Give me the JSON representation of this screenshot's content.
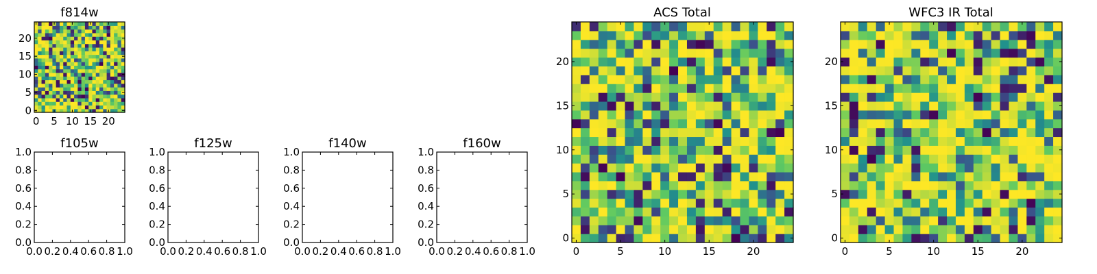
{
  "chart_data": [
    {
      "type": "heatmap",
      "title": "f814w",
      "colormap": "viridis",
      "grid_size": [
        25,
        25
      ],
      "xlim": [
        -0.5,
        24.5
      ],
      "ylim": [
        -0.5,
        24.5
      ],
      "xticks": [
        "0",
        "5",
        "10",
        "15",
        "20"
      ],
      "yticks": [
        "0",
        "5",
        "10",
        "15",
        "20"
      ],
      "seed": 11
    },
    {
      "type": "empty",
      "title": "f105w",
      "xlim": [
        0,
        1
      ],
      "ylim": [
        0,
        1
      ],
      "xticks": [
        "0.0",
        "0.2",
        "0.4",
        "0.6",
        "0.8",
        "1.0"
      ],
      "yticks": [
        "0.0",
        "0.2",
        "0.4",
        "0.6",
        "0.8",
        "1.0"
      ]
    },
    {
      "type": "empty",
      "title": "f125w",
      "xlim": [
        0,
        1
      ],
      "ylim": [
        0,
        1
      ],
      "xticks": [
        "0.0",
        "0.2",
        "0.4",
        "0.6",
        "0.8",
        "1.0"
      ],
      "yticks": [
        "0.0",
        "0.2",
        "0.4",
        "0.6",
        "0.8",
        "1.0"
      ]
    },
    {
      "type": "empty",
      "title": "f140w",
      "xlim": [
        0,
        1
      ],
      "ylim": [
        0,
        1
      ],
      "xticks": [
        "0.0",
        "0.2",
        "0.4",
        "0.6",
        "0.8",
        "1.0"
      ],
      "yticks": [
        "0.0",
        "0.2",
        "0.4",
        "0.6",
        "0.8",
        "1.0"
      ]
    },
    {
      "type": "empty",
      "title": "f160w",
      "xlim": [
        0,
        1
      ],
      "ylim": [
        0,
        1
      ],
      "xticks": [
        "0.0",
        "0.2",
        "0.4",
        "0.6",
        "0.8",
        "1.0"
      ],
      "yticks": [
        "0.0",
        "0.2",
        "0.4",
        "0.6",
        "0.8",
        "1.0"
      ]
    },
    {
      "type": "heatmap",
      "title": "ACS Total",
      "colormap": "viridis",
      "grid_size": [
        25,
        25
      ],
      "xlim": [
        -0.5,
        24.5
      ],
      "ylim": [
        -0.5,
        24.5
      ],
      "xticks": [
        "0",
        "5",
        "10",
        "15",
        "20"
      ],
      "yticks": [
        "0",
        "5",
        "10",
        "15",
        "20"
      ],
      "seed": 29
    },
    {
      "type": "heatmap",
      "title": "WFC3 IR Total",
      "colormap": "viridis",
      "grid_size": [
        25,
        25
      ],
      "xlim": [
        -0.5,
        24.5
      ],
      "ylim": [
        -0.5,
        24.5
      ],
      "xticks": [
        "0",
        "5",
        "10",
        "15",
        "20"
      ],
      "yticks": [
        "0",
        "5",
        "10",
        "15",
        "20"
      ],
      "seed": 47
    }
  ]
}
